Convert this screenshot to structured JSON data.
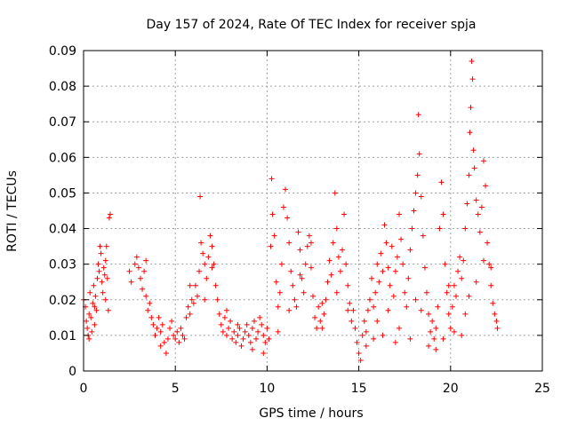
{
  "chart_data": {
    "type": "scatter",
    "title": "Day 157 of 2024, Rate Of TEC Index for receiver spja",
    "xlabel": "GPS time / hours",
    "ylabel": "ROTI / TECUs",
    "xlim": [
      0,
      25
    ],
    "ylim": [
      0,
      0.09
    ],
    "xticks": [
      {
        "value": 0,
        "label": "0"
      },
      {
        "value": 5,
        "label": "5"
      },
      {
        "value": 10,
        "label": "10"
      },
      {
        "value": 15,
        "label": "15"
      },
      {
        "value": 20,
        "label": "20"
      },
      {
        "value": 25,
        "label": "25"
      }
    ],
    "yticks": [
      {
        "value": 0,
        "label": "0"
      },
      {
        "value": 0.01,
        "label": "0.01"
      },
      {
        "value": 0.02,
        "label": "0.02"
      },
      {
        "value": 0.03,
        "label": "0.03"
      },
      {
        "value": 0.04,
        "label": "0.04"
      },
      {
        "value": 0.05,
        "label": "0.05"
      },
      {
        "value": 0.06,
        "label": "0.06"
      },
      {
        "value": 0.07,
        "label": "0.07"
      },
      {
        "value": 0.08,
        "label": "0.08"
      },
      {
        "value": 0.09,
        "label": "0.09"
      }
    ],
    "grid": true,
    "marker": "+",
    "color": "#ff0000",
    "series": [
      {
        "name": "ROTI",
        "points": [
          [
            0.0,
            0.02
          ],
          [
            0.1,
            0.018
          ],
          [
            0.15,
            0.014
          ],
          [
            0.2,
            0.012
          ],
          [
            0.25,
            0.01
          ],
          [
            0.3,
            0.016
          ],
          [
            0.35,
            0.022
          ],
          [
            0.4,
            0.015
          ],
          [
            0.45,
            0.011
          ],
          [
            0.5,
            0.019
          ],
          [
            0.55,
            0.024
          ],
          [
            0.6,
            0.018
          ],
          [
            0.65,
            0.021
          ],
          [
            0.7,
            0.017
          ],
          [
            0.75,
            0.026
          ],
          [
            0.8,
            0.03
          ],
          [
            0.85,
            0.028
          ],
          [
            0.9,
            0.035
          ],
          [
            0.95,
            0.033
          ],
          [
            1.0,
            0.025
          ],
          [
            1.05,
            0.022
          ],
          [
            1.1,
            0.029
          ],
          [
            1.15,
            0.027
          ],
          [
            1.2,
            0.031
          ],
          [
            1.25,
            0.035
          ],
          [
            1.3,
            0.026
          ],
          [
            1.35,
            0.017
          ],
          [
            1.4,
            0.043
          ],
          [
            1.45,
            0.044
          ],
          [
            2.5,
            0.028
          ],
          [
            2.6,
            0.025
          ],
          [
            2.8,
            0.03
          ],
          [
            2.9,
            0.032
          ],
          [
            3.0,
            0.029
          ],
          [
            3.1,
            0.026
          ],
          [
            3.2,
            0.023
          ],
          [
            3.3,
            0.028
          ],
          [
            3.4,
            0.021
          ],
          [
            3.5,
            0.017
          ],
          [
            3.6,
            0.019
          ],
          [
            3.7,
            0.015
          ],
          [
            3.8,
            0.013
          ],
          [
            3.9,
            0.01
          ],
          [
            4.0,
            0.012
          ],
          [
            4.1,
            0.015
          ],
          [
            4.2,
            0.011
          ],
          [
            4.3,
            0.013
          ],
          [
            4.4,
            0.008
          ],
          [
            4.5,
            0.005
          ],
          [
            4.6,
            0.009
          ],
          [
            4.7,
            0.012
          ],
          [
            4.8,
            0.014
          ],
          [
            4.9,
            0.01
          ],
          [
            5.0,
            0.009
          ],
          [
            5.1,
            0.011
          ],
          [
            5.2,
            0.008
          ],
          [
            5.3,
            0.012
          ],
          [
            5.4,
            0.01
          ],
          [
            5.5,
            0.009
          ],
          [
            5.6,
            0.015
          ],
          [
            5.7,
            0.018
          ],
          [
            5.8,
            0.016
          ],
          [
            5.9,
            0.02
          ],
          [
            6.0,
            0.019
          ],
          [
            6.1,
            0.024
          ],
          [
            6.2,
            0.021
          ],
          [
            6.3,
            0.028
          ],
          [
            6.35,
            0.049
          ],
          [
            6.4,
            0.036
          ],
          [
            6.5,
            0.033
          ],
          [
            6.6,
            0.03
          ],
          [
            6.7,
            0.026
          ],
          [
            6.8,
            0.032
          ],
          [
            6.9,
            0.038
          ],
          [
            7.0,
            0.035
          ],
          [
            7.1,
            0.03
          ],
          [
            7.2,
            0.024
          ],
          [
            7.3,
            0.02
          ],
          [
            7.4,
            0.016
          ],
          [
            7.5,
            0.013
          ],
          [
            7.6,
            0.011
          ],
          [
            7.7,
            0.015
          ],
          [
            7.8,
            0.01
          ],
          [
            7.9,
            0.012
          ],
          [
            8.0,
            0.014
          ],
          [
            8.1,
            0.009
          ],
          [
            8.2,
            0.011
          ],
          [
            8.3,
            0.008
          ],
          [
            8.4,
            0.01
          ],
          [
            8.5,
            0.012
          ],
          [
            8.6,
            0.007
          ],
          [
            8.7,
            0.009
          ],
          [
            8.8,
            0.011
          ],
          [
            8.9,
            0.013
          ],
          [
            9.0,
            0.01
          ],
          [
            9.1,
            0.008
          ],
          [
            9.2,
            0.012
          ],
          [
            9.3,
            0.014
          ],
          [
            9.4,
            0.009
          ],
          [
            9.5,
            0.011
          ],
          [
            9.6,
            0.015
          ],
          [
            9.7,
            0.013
          ],
          [
            9.8,
            0.01
          ],
          [
            9.9,
            0.008
          ],
          [
            10.0,
            0.012
          ],
          [
            10.1,
            0.009
          ],
          [
            10.2,
            0.035
          ],
          [
            10.25,
            0.054
          ],
          [
            10.3,
            0.044
          ],
          [
            10.4,
            0.038
          ],
          [
            10.5,
            0.025
          ],
          [
            10.6,
            0.018
          ],
          [
            10.7,
            0.022
          ],
          [
            10.8,
            0.03
          ],
          [
            10.9,
            0.046
          ],
          [
            11.0,
            0.051
          ],
          [
            11.1,
            0.043
          ],
          [
            11.2,
            0.036
          ],
          [
            11.3,
            0.028
          ],
          [
            11.4,
            0.024
          ],
          [
            11.5,
            0.02
          ],
          [
            11.6,
            0.018
          ],
          [
            11.7,
            0.039
          ],
          [
            11.8,
            0.034
          ],
          [
            11.9,
            0.026
          ],
          [
            12.0,
            0.022
          ],
          [
            12.1,
            0.03
          ],
          [
            12.2,
            0.035
          ],
          [
            12.3,
            0.038
          ],
          [
            12.4,
            0.029
          ],
          [
            12.5,
            0.021
          ],
          [
            12.6,
            0.015
          ],
          [
            12.7,
            0.012
          ],
          [
            12.8,
            0.018
          ],
          [
            12.9,
            0.014
          ],
          [
            13.0,
            0.012
          ],
          [
            13.1,
            0.016
          ],
          [
            13.2,
            0.02
          ],
          [
            13.3,
            0.025
          ],
          [
            13.4,
            0.031
          ],
          [
            13.5,
            0.027
          ],
          [
            13.6,
            0.036
          ],
          [
            13.7,
            0.05
          ],
          [
            13.8,
            0.04
          ],
          [
            13.9,
            0.032
          ],
          [
            14.0,
            0.028
          ],
          [
            14.1,
            0.034
          ],
          [
            14.2,
            0.044
          ],
          [
            14.3,
            0.03
          ],
          [
            14.4,
            0.024
          ],
          [
            14.5,
            0.019
          ],
          [
            14.6,
            0.014
          ],
          [
            14.7,
            0.017
          ],
          [
            14.8,
            0.012
          ],
          [
            14.9,
            0.008
          ],
          [
            15.0,
            0.005
          ],
          [
            15.1,
            0.003
          ],
          [
            15.2,
            0.01
          ],
          [
            15.3,
            0.014
          ],
          [
            15.4,
            0.011
          ],
          [
            15.5,
            0.017
          ],
          [
            15.6,
            0.02
          ],
          [
            15.7,
            0.026
          ],
          [
            15.8,
            0.018
          ],
          [
            15.9,
            0.022
          ],
          [
            16.0,
            0.03
          ],
          [
            16.1,
            0.025
          ],
          [
            16.2,
            0.033
          ],
          [
            16.3,
            0.028
          ],
          [
            16.4,
            0.041
          ],
          [
            16.5,
            0.036
          ],
          [
            16.6,
            0.029
          ],
          [
            16.7,
            0.024
          ],
          [
            16.8,
            0.035
          ],
          [
            16.9,
            0.021
          ],
          [
            17.0,
            0.028
          ],
          [
            17.1,
            0.032
          ],
          [
            17.2,
            0.044
          ],
          [
            17.3,
            0.037
          ],
          [
            17.4,
            0.03
          ],
          [
            17.5,
            0.022
          ],
          [
            17.6,
            0.018
          ],
          [
            17.7,
            0.026
          ],
          [
            17.8,
            0.034
          ],
          [
            17.9,
            0.04
          ],
          [
            18.0,
            0.045
          ],
          [
            18.1,
            0.05
          ],
          [
            18.2,
            0.055
          ],
          [
            18.25,
            0.072
          ],
          [
            18.3,
            0.061
          ],
          [
            18.4,
            0.049
          ],
          [
            18.5,
            0.038
          ],
          [
            18.6,
            0.029
          ],
          [
            18.7,
            0.022
          ],
          [
            18.8,
            0.016
          ],
          [
            18.9,
            0.011
          ],
          [
            19.0,
            0.014
          ],
          [
            19.1,
            0.009
          ],
          [
            19.2,
            0.012
          ],
          [
            19.3,
            0.018
          ],
          [
            19.4,
            0.04
          ],
          [
            19.5,
            0.053
          ],
          [
            19.6,
            0.044
          ],
          [
            19.7,
            0.03
          ],
          [
            19.8,
            0.022
          ],
          [
            19.9,
            0.016
          ],
          [
            20.0,
            0.012
          ],
          [
            20.1,
            0.018
          ],
          [
            20.2,
            0.024
          ],
          [
            20.3,
            0.021
          ],
          [
            20.4,
            0.028
          ],
          [
            20.5,
            0.032
          ],
          [
            20.6,
            0.026
          ],
          [
            20.7,
            0.031
          ],
          [
            20.8,
            0.04
          ],
          [
            20.9,
            0.047
          ],
          [
            21.0,
            0.055
          ],
          [
            21.05,
            0.067
          ],
          [
            21.1,
            0.074
          ],
          [
            21.15,
            0.087
          ],
          [
            21.2,
            0.082
          ],
          [
            21.25,
            0.062
          ],
          [
            21.3,
            0.057
          ],
          [
            21.4,
            0.048
          ],
          [
            21.5,
            0.044
          ],
          [
            21.6,
            0.039
          ],
          [
            21.7,
            0.046
          ],
          [
            21.8,
            0.059
          ],
          [
            21.9,
            0.052
          ],
          [
            22.0,
            0.036
          ],
          [
            22.1,
            0.03
          ],
          [
            22.2,
            0.024
          ],
          [
            22.3,
            0.019
          ],
          [
            22.4,
            0.016
          ],
          [
            22.5,
            0.014
          ],
          [
            22.55,
            0.012
          ],
          [
            0.3,
            0.009
          ],
          [
            0.6,
            0.013
          ],
          [
            1.2,
            0.02
          ],
          [
            3.4,
            0.031
          ],
          [
            4.2,
            0.007
          ],
          [
            5.8,
            0.024
          ],
          [
            6.6,
            0.02
          ],
          [
            7.0,
            0.029
          ],
          [
            7.8,
            0.017
          ],
          [
            8.4,
            0.013
          ],
          [
            9.2,
            0.006
          ],
          [
            9.8,
            0.005
          ],
          [
            10.6,
            0.011
          ],
          [
            11.2,
            0.017
          ],
          [
            11.8,
            0.027
          ],
          [
            12.4,
            0.036
          ],
          [
            13.0,
            0.019
          ],
          [
            13.8,
            0.022
          ],
          [
            14.4,
            0.017
          ],
          [
            15.4,
            0.007
          ],
          [
            16.0,
            0.014
          ],
          [
            16.6,
            0.017
          ],
          [
            17.2,
            0.012
          ],
          [
            17.8,
            0.009
          ],
          [
            18.4,
            0.017
          ],
          [
            18.8,
            0.007
          ],
          [
            19.2,
            0.006
          ],
          [
            19.6,
            0.009
          ],
          [
            20.2,
            0.011
          ],
          [
            20.8,
            0.016
          ],
          [
            21.4,
            0.025
          ],
          [
            21.8,
            0.031
          ],
          [
            22.2,
            0.029
          ],
          [
            16.3,
            0.01
          ],
          [
            17.0,
            0.008
          ],
          [
            18.1,
            0.02
          ],
          [
            19.9,
            0.024
          ],
          [
            20.6,
            0.01
          ],
          [
            21.0,
            0.021
          ],
          [
            15.8,
            0.009
          ]
        ]
      }
    ]
  }
}
